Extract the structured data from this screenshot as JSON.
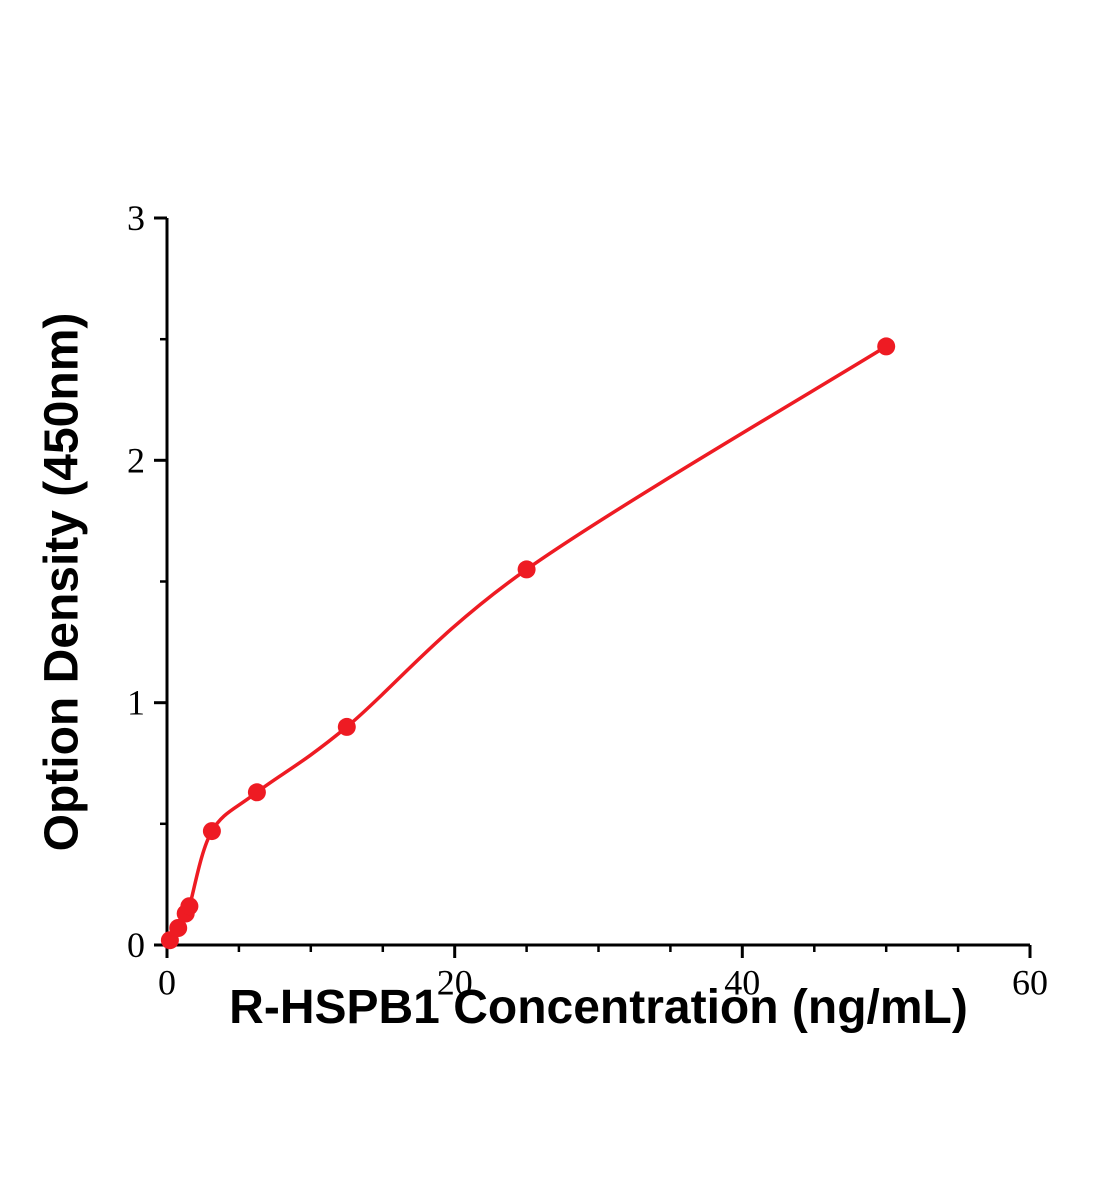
{
  "chart_data": {
    "type": "scatter",
    "title": "",
    "xlabel": "R-HSPB1 Concentration (ng/mL)",
    "ylabel": "Option Density (450nm)",
    "xlim": [
      0,
      60
    ],
    "ylim": [
      0,
      3
    ],
    "x_ticks": [
      0,
      20,
      40,
      60
    ],
    "x_tick_labels": [
      "0",
      "20",
      "40",
      "60"
    ],
    "y_ticks": [
      0,
      1,
      2,
      3
    ],
    "y_tick_labels": [
      "0",
      "1",
      "2",
      "3"
    ],
    "x_minor_step": 5,
    "y_minor_step": 0.5,
    "grid": false,
    "legend": "none",
    "axis_color": "#000000",
    "series": [
      {
        "name": "R-HSPB1 standard curve",
        "color": "#ee1b23",
        "marker": "circle",
        "curve": "smooth-fit",
        "points": [
          {
            "x": 0.2,
            "y": 0.02
          },
          {
            "x": 0.78,
            "y": 0.07
          },
          {
            "x": 1.3,
            "y": 0.13
          },
          {
            "x": 1.56,
            "y": 0.16
          },
          {
            "x": 3.125,
            "y": 0.47
          },
          {
            "x": 6.25,
            "y": 0.63
          },
          {
            "x": 12.5,
            "y": 0.9
          },
          {
            "x": 25,
            "y": 1.55
          },
          {
            "x": 50,
            "y": 2.47
          }
        ]
      }
    ]
  }
}
